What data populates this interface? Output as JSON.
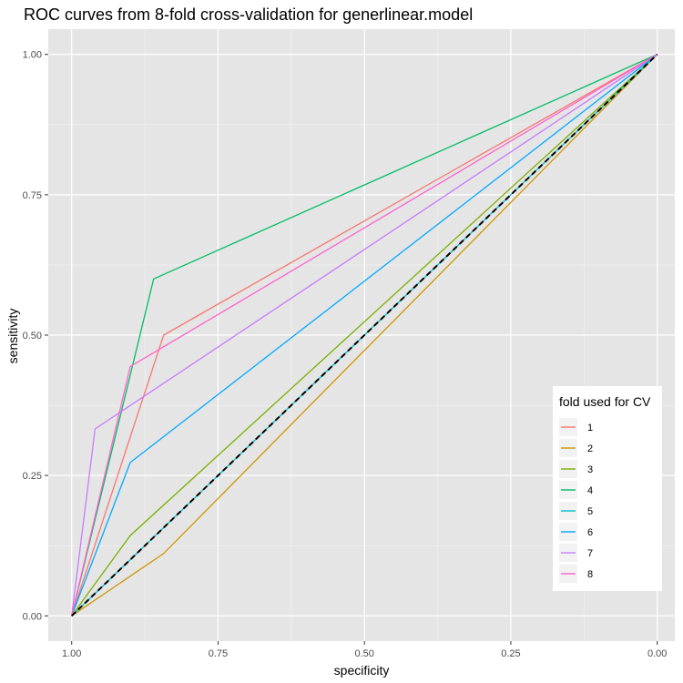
{
  "chart_data": {
    "type": "line",
    "title": "ROC curves from 8-fold cross-validation for generlinear.model",
    "xlabel": "specificity",
    "ylabel": "sensitivity",
    "x_reversed": true,
    "xlim": [
      1.04,
      -0.03
    ],
    "ylim": [
      -0.045,
      1.045
    ],
    "x_ticks": [
      1.0,
      0.75,
      0.5,
      0.25,
      0.0
    ],
    "x_tick_labels": [
      "1.00",
      "0.75",
      "0.50",
      "0.25",
      "0.00"
    ],
    "y_ticks": [
      0.0,
      0.25,
      0.5,
      0.75,
      1.0
    ],
    "y_tick_labels": [
      "0.00",
      "0.25",
      "0.50",
      "0.75",
      "1.00"
    ],
    "grid": true,
    "legend": {
      "title": "fold used for CV",
      "placement": "right"
    },
    "background": "#e5e5e5",
    "series": [
      {
        "name": "1",
        "color": "#F8766D",
        "x": [
          1.0,
          0.843,
          0.0
        ],
        "y": [
          0.0,
          0.5,
          1.0
        ]
      },
      {
        "name": "2",
        "color": "#CD9600",
        "x": [
          1.0,
          0.843,
          0.0
        ],
        "y": [
          0.0,
          0.111,
          1.0
        ]
      },
      {
        "name": "3",
        "color": "#7CAE00",
        "x": [
          1.0,
          0.9,
          0.0
        ],
        "y": [
          0.0,
          0.143,
          1.0
        ]
      },
      {
        "name": "4",
        "color": "#00BE67",
        "x": [
          1.0,
          0.86,
          0.0
        ],
        "y": [
          0.0,
          0.6,
          1.0
        ]
      },
      {
        "name": "5",
        "color": "#00BFC4",
        "x": [
          1.0,
          0.0
        ],
        "y": [
          0.0,
          1.0
        ]
      },
      {
        "name": "6",
        "color": "#00A9FF",
        "x": [
          1.0,
          0.9,
          0.0
        ],
        "y": [
          0.0,
          0.273,
          1.0
        ]
      },
      {
        "name": "7",
        "color": "#C77CFF",
        "x": [
          1.0,
          0.96,
          0.0
        ],
        "y": [
          0.0,
          0.333,
          1.0
        ]
      },
      {
        "name": "8",
        "color": "#FF61CC",
        "x": [
          1.0,
          0.9,
          0.0
        ],
        "y": [
          0.0,
          0.444,
          1.0
        ]
      }
    ],
    "reference_line": {
      "x": [
        1.0,
        0.0
      ],
      "y": [
        0.0,
        1.0
      ],
      "color": "#000000",
      "style": "dashed"
    }
  }
}
